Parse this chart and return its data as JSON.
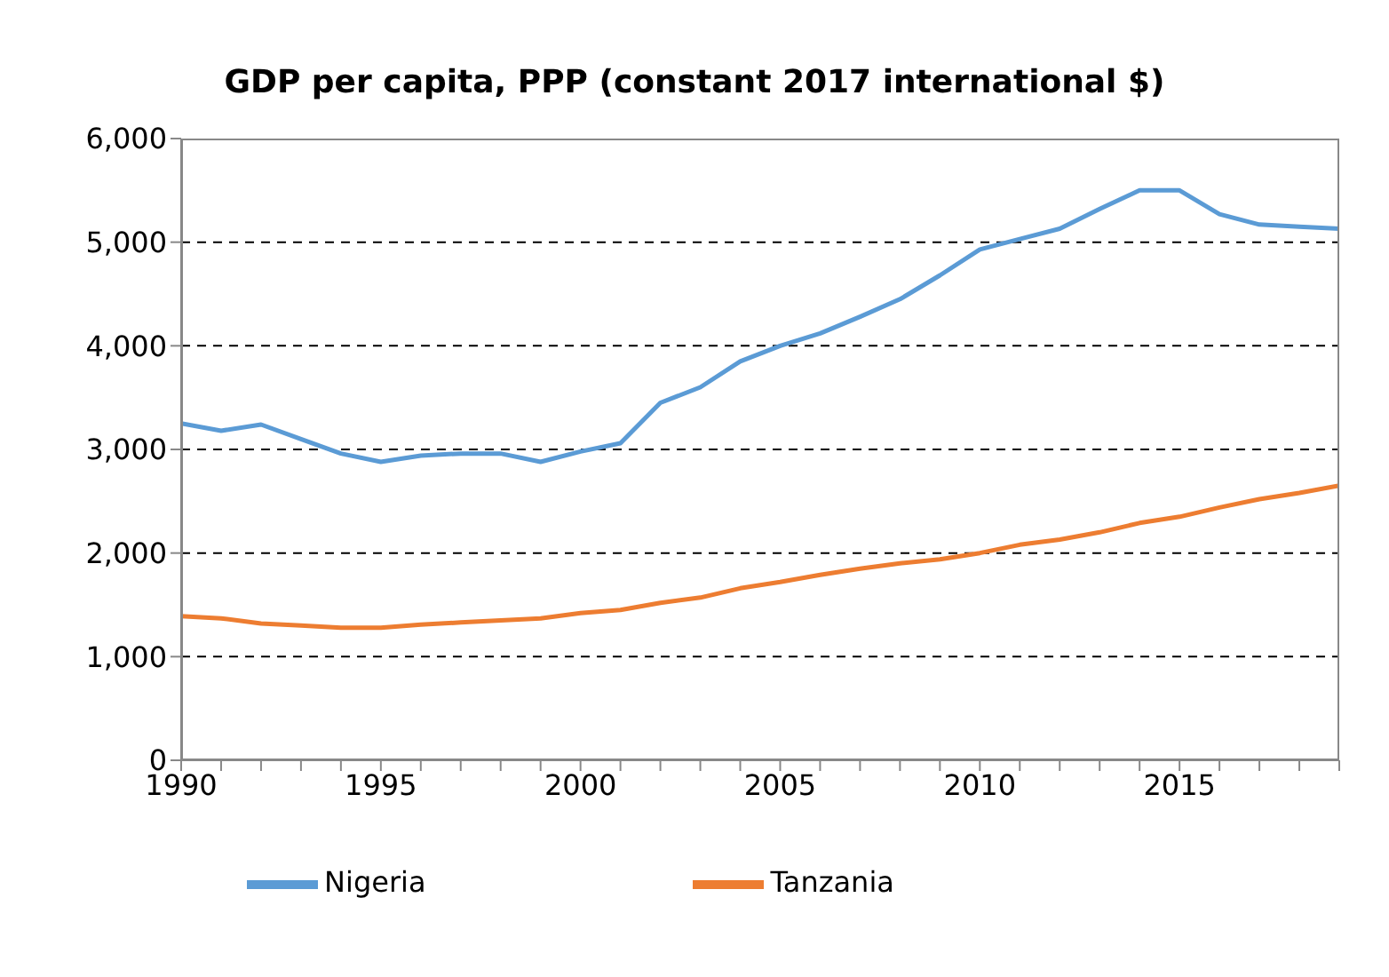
{
  "chart_data": {
    "type": "line",
    "title": "GDP per capita, PPP (constant 2017 international $)",
    "x": [
      1990,
      1991,
      1992,
      1993,
      1994,
      1995,
      1996,
      1997,
      1998,
      1999,
      2000,
      2001,
      2002,
      2003,
      2004,
      2005,
      2006,
      2007,
      2008,
      2009,
      2010,
      2011,
      2012,
      2013,
      2014,
      2015,
      2016,
      2017,
      2018,
      2019
    ],
    "series": [
      {
        "name": "Nigeria",
        "color": "#5b9bd5",
        "values": [
          3250,
          3180,
          3240,
          3100,
          2960,
          2880,
          2940,
          2960,
          2960,
          2880,
          2980,
          3060,
          3450,
          3600,
          3850,
          4000,
          4120,
          4280,
          4450,
          4680,
          4930,
          5030,
          5130,
          5320,
          5500,
          5500,
          5270,
          5170,
          5150,
          5130
        ]
      },
      {
        "name": "Tanzania",
        "color": "#ed7d31",
        "values": [
          1390,
          1370,
          1320,
          1300,
          1280,
          1280,
          1310,
          1330,
          1350,
          1370,
          1420,
          1450,
          1520,
          1570,
          1660,
          1720,
          1790,
          1850,
          1900,
          1940,
          2000,
          2080,
          2130,
          2200,
          2290,
          2350,
          2440,
          2520,
          2580,
          2650
        ]
      }
    ],
    "xlim": [
      1990,
      2019
    ],
    "xticks": [
      1990,
      {
        "value": 1991,
        "label": null
      },
      {
        "value": 1992,
        "label": null
      },
      {
        "value": 1993,
        "label": null
      },
      {
        "value": 1994,
        "label": null
      },
      1995,
      {
        "value": 1996,
        "label": null
      },
      {
        "value": 1997,
        "label": null
      },
      {
        "value": 1998,
        "label": null
      },
      {
        "value": 1999,
        "label": null
      },
      2000,
      {
        "value": 2001,
        "label": null
      },
      {
        "value": 2002,
        "label": null
      },
      {
        "value": 2003,
        "label": null
      },
      {
        "value": 2004,
        "label": null
      },
      2005,
      {
        "value": 2006,
        "label": null
      },
      {
        "value": 2007,
        "label": null
      },
      {
        "value": 2008,
        "label": null
      },
      {
        "value": 2009,
        "label": null
      },
      2010,
      {
        "value": 2011,
        "label": null
      },
      {
        "value": 2012,
        "label": null
      },
      {
        "value": 2013,
        "label": null
      },
      {
        "value": 2014,
        "label": null
      },
      2015,
      {
        "value": 2016,
        "label": null
      },
      {
        "value": 2017,
        "label": null
      },
      {
        "value": 2018,
        "label": null
      },
      {
        "value": 2019,
        "label": null
      }
    ],
    "ylim": [
      0,
      6000
    ],
    "yticks": [
      {
        "value": 0,
        "label": "0"
      },
      {
        "value": 1000,
        "label": "1,000"
      },
      {
        "value": 2000,
        "label": "2,000"
      },
      {
        "value": 3000,
        "label": "3,000"
      },
      {
        "value": 4000,
        "label": "4,000"
      },
      {
        "value": 5000,
        "label": "5,000"
      },
      {
        "value": 6000,
        "label": "6,000"
      }
    ],
    "grid": "y",
    "legend": "bottom",
    "marker": "none",
    "line_style": "solid"
  }
}
